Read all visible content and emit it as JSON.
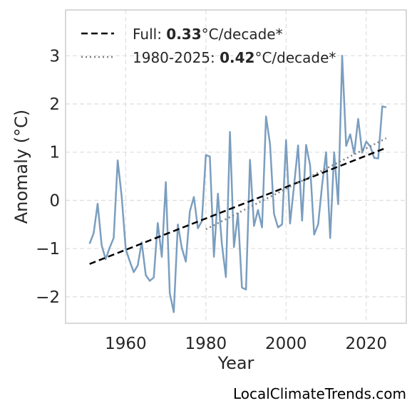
{
  "chart_data": {
    "type": "line",
    "xlabel": "Year",
    "ylabel": "Anomaly (°C)",
    "xlim": [
      1945,
      2030
    ],
    "ylim": [
      -2.55,
      3.95
    ],
    "xticks": [
      1960,
      1980,
      2000,
      2020
    ],
    "yticks": [
      -2,
      -1,
      0,
      1,
      2,
      3
    ],
    "ytick_labels": [
      "−2",
      "−1",
      "0",
      "1",
      "2",
      "3"
    ],
    "grid": true,
    "legend_position": "top-left",
    "colors": {
      "series": "#7b9ebf",
      "full_trend": "#000000",
      "recent_trend": "#808080"
    },
    "series": [
      {
        "x": [
          1951,
          1952,
          1953,
          1954,
          1955,
          1956,
          1957,
          1958,
          1959,
          1960,
          1961,
          1962,
          1963,
          1964,
          1965,
          1966,
          1967,
          1968,
          1969,
          1970,
          1971,
          1972,
          1973,
          1974,
          1975,
          1976,
          1977,
          1978,
          1979,
          1980,
          1981,
          1982,
          1983,
          1984,
          1985,
          1986,
          1987,
          1988,
          1989,
          1990,
          1991,
          1992,
          1993,
          1994,
          1995,
          1996,
          1997,
          1998,
          1999,
          2000,
          2001,
          2002,
          2003,
          2004,
          2005,
          2006,
          2007,
          2008,
          2009,
          2010,
          2011,
          2012,
          2013,
          2014,
          2015,
          2016,
          2017,
          2018,
          2019,
          2020,
          2021,
          2022,
          2023,
          2024,
          2025
        ],
        "values": [
          -0.9,
          -0.68,
          -0.07,
          -0.93,
          -1.22,
          -0.98,
          -0.78,
          0.83,
          0.08,
          -1.01,
          -1.26,
          -1.49,
          -1.35,
          -0.87,
          -1.55,
          -1.67,
          -1.6,
          -0.47,
          -1.17,
          0.38,
          -1.93,
          -2.32,
          -0.5,
          -0.99,
          -1.27,
          -0.23,
          0.07,
          -0.58,
          -0.43,
          0.94,
          0.91,
          -1.17,
          0.14,
          -0.91,
          -1.59,
          1.42,
          -0.97,
          -0.27,
          -1.81,
          -1.85,
          0.84,
          -0.53,
          -0.2,
          -0.56,
          1.74,
          1.17,
          -0.28,
          -0.56,
          -0.5,
          1.25,
          -0.48,
          0.3,
          1.14,
          -0.42,
          1.15,
          0.73,
          -0.71,
          -0.5,
          0.32,
          1.0,
          -0.78,
          1.0,
          -0.08,
          3.0,
          1.13,
          1.37,
          0.97,
          1.69,
          0.99,
          1.22,
          1.12,
          0.88,
          0.87,
          1.95,
          1.93
        ]
      },
      {
        "name": "Full trend",
        "style": "dashed",
        "x": [
          1951,
          2025
        ],
        "values": [
          -1.32,
          1.09
        ]
      },
      {
        "name": "1980-2025 trend",
        "style": "dotted",
        "x": [
          1980,
          2025
        ],
        "values": [
          -0.6,
          1.29
        ]
      }
    ],
    "legend": [
      {
        "prefix": "Full: ",
        "value": "0.33",
        "suffix": "°C/decade*"
      },
      {
        "prefix": "1980-2025: ",
        "value": "0.42",
        "suffix": "°C/decade*"
      }
    ]
  },
  "credit": "LocalClimateTrends.com"
}
